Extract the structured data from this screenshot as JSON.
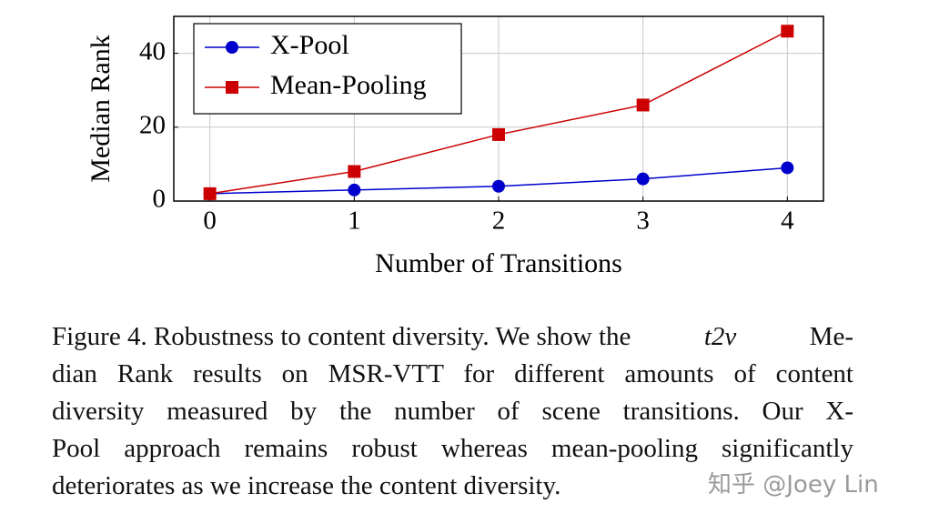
{
  "chart_data": {
    "type": "line",
    "x_label": "Number of Transitions",
    "y_label": "Median Rank",
    "x": [
      0,
      1,
      2,
      3,
      4
    ],
    "series": [
      {
        "name": "X-Pool",
        "color": "#0000cc",
        "marker": "circle",
        "values": [
          2,
          3,
          4,
          6,
          9
        ]
      },
      {
        "name": "Mean-Pooling",
        "color": "#cc0000",
        "marker": "square",
        "values": [
          2,
          8,
          18,
          26,
          46
        ]
      }
    ],
    "xlim": [
      -0.25,
      4.25
    ],
    "xticks": [
      0,
      1,
      2,
      3,
      4
    ],
    "ylim": [
      0,
      50
    ],
    "yticks": [
      0,
      20,
      40
    ],
    "grid": true,
    "legend": "upper left"
  },
  "caption": {
    "lines": [
      [
        "Figure 4. Robustness to content diversity. We show the",
        "t2v",
        "Me-"
      ],
      [
        "dian Rank results on MSR-VTT for different amounts of content"
      ],
      [
        "diversity measured by the number of scene transitions. Our X-"
      ],
      [
        "Pool approach remains robust whereas mean-pooling significantly"
      ],
      [
        "deteriorates as we increase the content diversity."
      ]
    ]
  },
  "watermark": "知乎 @Joey Lin"
}
